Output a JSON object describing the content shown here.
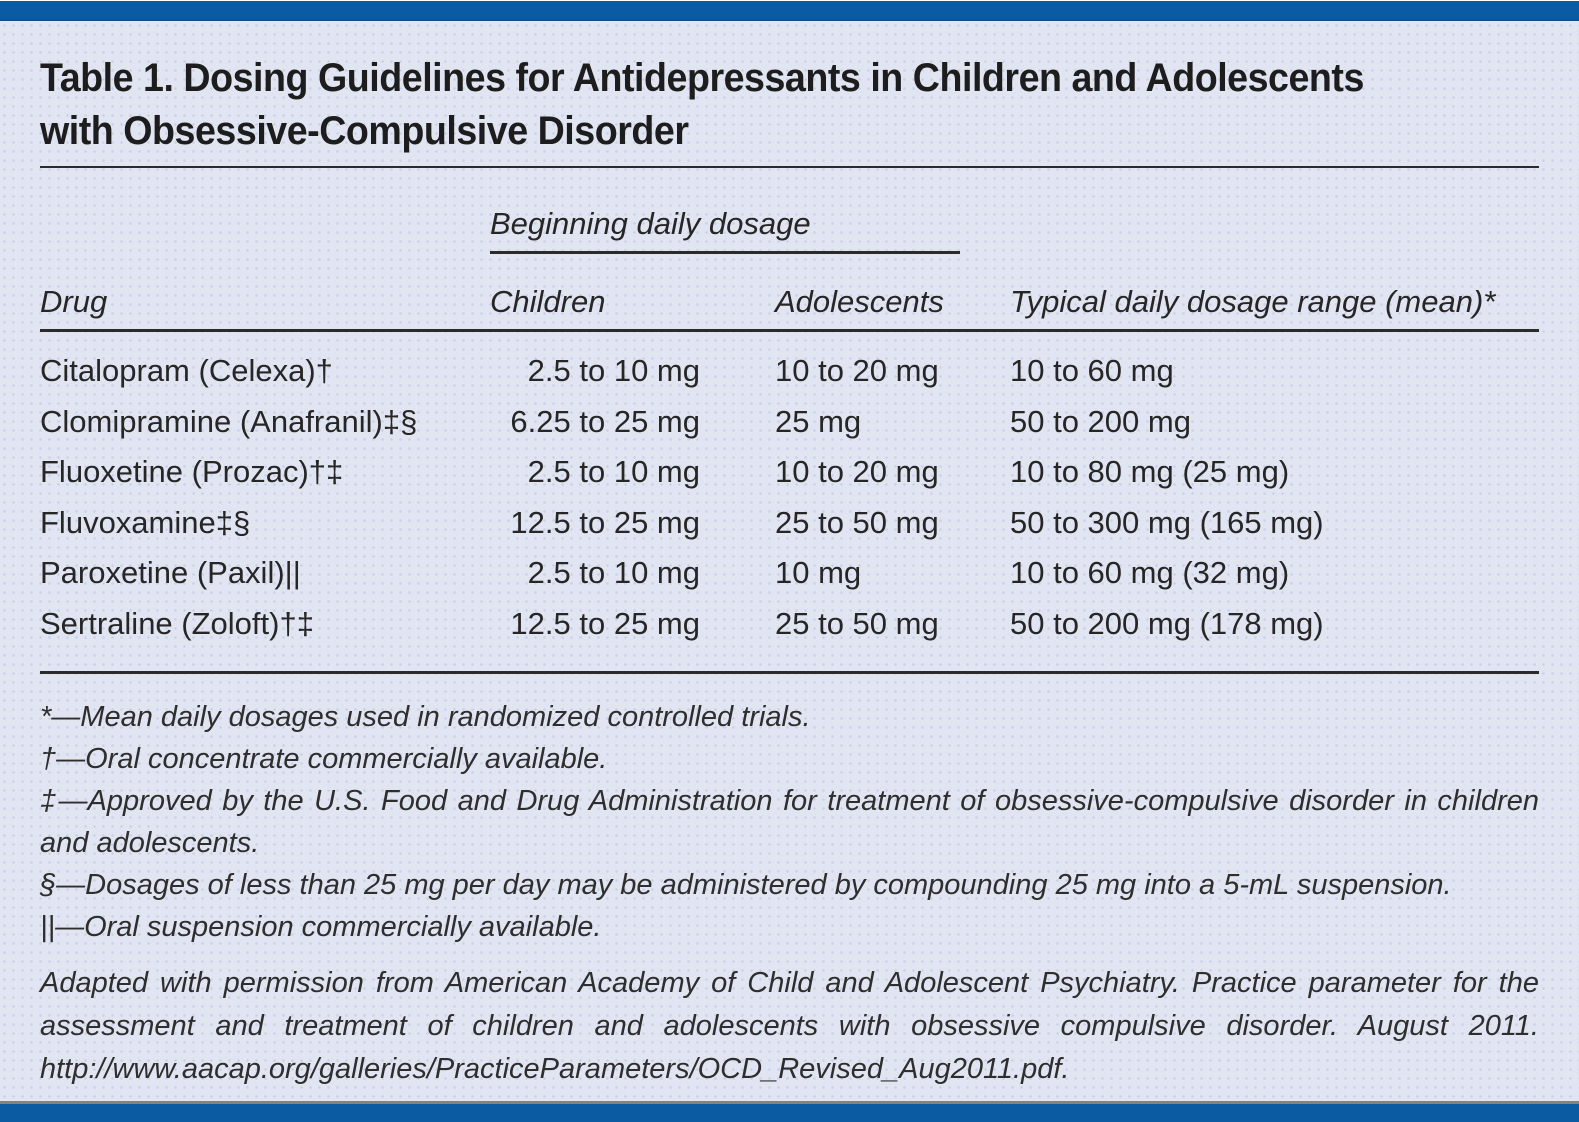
{
  "header": {
    "title_lines": [
      "Table 1. Dosing Guidelines for Antidepressants in Children and Adolescents",
      "with Obsessive-Compulsive Disorder"
    ]
  },
  "table": {
    "spanner_label": "Beginning daily dosage",
    "columns": {
      "drug": "Drug",
      "children": "Children",
      "adolescents": "Adolescents",
      "typical": "Typical daily dosage range (mean)*"
    },
    "rows": [
      {
        "drug": "Citalopram (Celexa)†",
        "children": "2.5 to 10 mg",
        "adolescents": "10 to 20 mg",
        "typical": "10 to 60 mg"
      },
      {
        "drug": "Clomipramine (Anafranil)‡§",
        "children": "6.25 to 25 mg",
        "adolescents": "25 mg",
        "typical": "50 to 200 mg"
      },
      {
        "drug": "Fluoxetine (Prozac)†‡",
        "children": "2.5 to 10 mg",
        "adolescents": "10 to 20 mg",
        "typical": "10 to 80 mg (25 mg)"
      },
      {
        "drug": "Fluvoxamine‡§",
        "children": "12.5 to 25 mg",
        "adolescents": "25 to 50 mg",
        "typical": "50 to 300 mg (165 mg)"
      },
      {
        "drug": "Paroxetine (Paxil)||",
        "children": "2.5 to 10 mg",
        "adolescents": "10 mg",
        "typical": "10 to 60 mg (32 mg)"
      },
      {
        "drug": "Sertraline (Zoloft)†‡",
        "children": "12.5 to 25 mg",
        "adolescents": "25 to 50 mg",
        "typical": "50 to 200 mg (178 mg)"
      }
    ]
  },
  "footnotes": [
    "*—Mean daily dosages used in randomized controlled trials.",
    "†—Oral concentrate commercially available.",
    "‡—Approved by the U.S. Food and Drug Administration for treatment of obsessive-compulsive disorder in children and adolescents.",
    "§—Dosages of less than 25 mg per day may be administered by compounding 25 mg into a 5-mL suspension.",
    "||—Oral suspension commercially available."
  ],
  "attribution": "Adapted with permission from American Academy of Child and Adolescent Psychiatry. Practice parameter for the assessment and treatment of children and adolescents with obsessive compulsive disorder. August 2011. http://www.aacap.org/galleries/PracticeParameters/OCD_Revised_Aug2011.pdf.",
  "colors": {
    "bar_blue": "#0b5ba3",
    "bar_edge_navy": "#1a4f86",
    "background": "#e1e5f1",
    "background_dot": "#c9d2e8",
    "rule": "#2b2b2b",
    "bottom_gray_line": "#84847b",
    "text": "#262626"
  }
}
